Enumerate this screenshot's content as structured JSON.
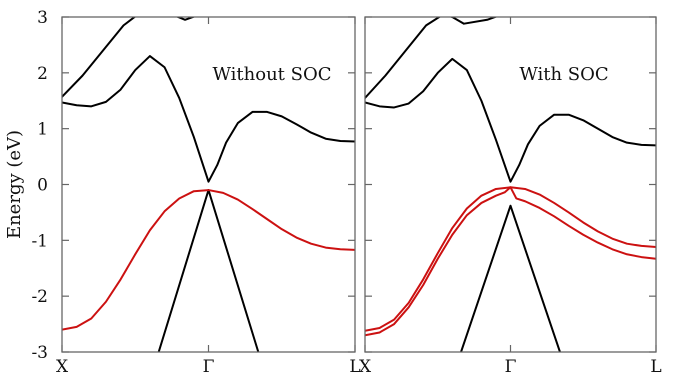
{
  "chart_data": {
    "type": "line",
    "ylabel": "Energy (eV)",
    "ylim": [
      -3,
      3
    ],
    "yticks": [
      "3",
      "2",
      "1",
      "0",
      "-1",
      "-2",
      "-3"
    ],
    "grid": false,
    "colors": {
      "conduction": "#000000",
      "valence": "#cc1111"
    },
    "panels": [
      {
        "title": "Without SOC",
        "xticks": [
          "X",
          "Γ",
          "L"
        ],
        "xlim": [
          0,
          1
        ],
        "series": [
          {
            "color": "#000000",
            "x": [
              0,
              0.07,
              0.14,
              0.21,
              0.26,
              0.3,
              0.35,
              0.42,
              0.5,
              0.55,
              0.62,
              0.72,
              0.82,
              0.9,
              1.0
            ],
            "y": [
              1.57,
              1.95,
              2.4,
              2.85,
              3.05,
              3.1,
              3.1,
              2.95,
              3.1,
              3.2,
              3.3,
              3.4,
              3.45,
              3.5,
              3.5
            ]
          },
          {
            "color": "#000000",
            "x": [
              0,
              0.05,
              0.1,
              0.15,
              0.2,
              0.25,
              0.3,
              0.35,
              0.4,
              0.45,
              0.5,
              0.53,
              0.56,
              0.6,
              0.65,
              0.7,
              0.75,
              0.8,
              0.85,
              0.9,
              0.95,
              1.0
            ],
            "y": [
              1.47,
              1.42,
              1.4,
              1.48,
              1.7,
              2.05,
              2.3,
              2.1,
              1.55,
              0.85,
              0.05,
              0.35,
              0.75,
              1.1,
              1.3,
              1.3,
              1.22,
              1.08,
              0.93,
              0.82,
              0.78,
              0.77
            ]
          },
          {
            "color": "#000000",
            "x": [
              0.33,
              0.5,
              0.67
            ],
            "y": [
              -3.0,
              -0.1,
              -3.0
            ]
          },
          {
            "color": "#cc1111",
            "x": [
              0,
              0.05,
              0.1,
              0.15,
              0.2,
              0.25,
              0.3,
              0.35,
              0.4,
              0.45,
              0.5,
              0.55,
              0.6,
              0.65,
              0.7,
              0.75,
              0.8,
              0.85,
              0.9,
              0.95,
              1.0
            ],
            "y": [
              -2.6,
              -2.55,
              -2.4,
              -2.1,
              -1.7,
              -1.25,
              -0.82,
              -0.48,
              -0.25,
              -0.12,
              -0.1,
              -0.15,
              -0.27,
              -0.44,
              -0.62,
              -0.8,
              -0.95,
              -1.06,
              -1.13,
              -1.16,
              -1.17
            ]
          }
        ]
      },
      {
        "title": "With SOC",
        "xticks": [
          "X",
          "Γ",
          "L"
        ],
        "xlim": [
          0,
          1
        ],
        "series": [
          {
            "color": "#000000",
            "x": [
              0,
              0.07,
              0.14,
              0.21,
              0.27,
              0.3,
              0.34,
              0.42,
              0.5,
              0.55,
              0.62,
              0.72,
              0.82,
              0.9,
              1.0
            ],
            "y": [
              1.55,
              1.95,
              2.4,
              2.85,
              3.05,
              3.0,
              2.88,
              2.95,
              3.1,
              3.2,
              3.3,
              3.4,
              3.45,
              3.5,
              3.5
            ]
          },
          {
            "color": "#000000",
            "x": [
              0,
              0.05,
              0.1,
              0.15,
              0.2,
              0.25,
              0.3,
              0.35,
              0.4,
              0.45,
              0.5,
              0.53,
              0.56,
              0.6,
              0.65,
              0.7,
              0.75,
              0.8,
              0.85,
              0.9,
              0.95,
              1.0
            ],
            "y": [
              1.47,
              1.4,
              1.38,
              1.45,
              1.67,
              2.0,
              2.25,
              2.05,
              1.5,
              0.8,
              0.05,
              0.35,
              0.72,
              1.05,
              1.25,
              1.25,
              1.15,
              1.0,
              0.85,
              0.75,
              0.71,
              0.7
            ]
          },
          {
            "color": "#000000",
            "x": [
              0.33,
              0.5,
              0.67
            ],
            "y": [
              -3.0,
              -0.38,
              -3.0
            ]
          },
          {
            "color": "#cc1111",
            "x": [
              0,
              0.05,
              0.1,
              0.15,
              0.2,
              0.25,
              0.3,
              0.35,
              0.4,
              0.45,
              0.5,
              0.55,
              0.6,
              0.65,
              0.7,
              0.75,
              0.8,
              0.85,
              0.9,
              0.95,
              1.0
            ],
            "y": [
              -2.62,
              -2.57,
              -2.42,
              -2.12,
              -1.7,
              -1.23,
              -0.78,
              -0.43,
              -0.2,
              -0.08,
              -0.05,
              -0.08,
              -0.18,
              -0.33,
              -0.5,
              -0.68,
              -0.84,
              -0.97,
              -1.06,
              -1.1,
              -1.12
            ]
          },
          {
            "color": "#cc1111",
            "x": [
              0,
              0.05,
              0.1,
              0.15,
              0.2,
              0.25,
              0.3,
              0.35,
              0.4,
              0.45,
              0.48,
              0.5,
              0.52,
              0.55,
              0.6,
              0.65,
              0.7,
              0.75,
              0.8,
              0.85,
              0.9,
              0.95,
              1.0
            ],
            "y": [
              -2.7,
              -2.65,
              -2.5,
              -2.2,
              -1.8,
              -1.33,
              -0.9,
              -0.55,
              -0.33,
              -0.2,
              -0.14,
              -0.05,
              -0.25,
              -0.3,
              -0.42,
              -0.57,
              -0.74,
              -0.9,
              -1.04,
              -1.16,
              -1.25,
              -1.3,
              -1.33
            ]
          }
        ]
      }
    ]
  }
}
